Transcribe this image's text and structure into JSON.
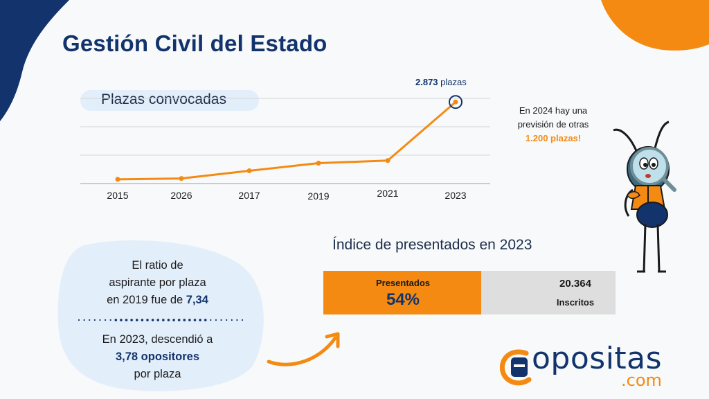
{
  "title": "Gestión Civil del Estado",
  "colors": {
    "navy": "#12336b",
    "orange": "#f48a12",
    "light_blue": "#e3eefb",
    "bar_gray": "#dedede"
  },
  "chart_data": [
    {
      "type": "line",
      "title": "Plazas convocadas",
      "categories": [
        "2015",
        "2026",
        "2017",
        "2019",
        "2021",
        "2023"
      ],
      "series": [
        {
          "values": [
            150,
            180,
            450,
            720,
            810,
            2873
          ]
        }
      ],
      "ylim": [
        0,
        3000
      ],
      "grid": true,
      "annotation": {
        "value": "2.873",
        "unit": "plazas",
        "point": "2023"
      }
    },
    {
      "type": "bar",
      "title": "Índice de presentados en 2023",
      "categories": [
        "Presentados",
        "Inscritos"
      ],
      "values": [
        54,
        100
      ],
      "labels": {
        "presentados_label": "Presentados",
        "presentados_value": "54%",
        "inscritos_value": "20.364",
        "inscritos_label": "Inscritos"
      }
    }
  ],
  "forecast": {
    "line1": "En 2024 hay una",
    "line2": "previsión de otras",
    "highlight": "1.200 plazas!"
  },
  "ratio_box": {
    "line1": "El ratio de",
    "line2": "aspirante por plaza",
    "line3_prefix": "en 2019 fue de",
    "line3_value": "7,34",
    "line4": "En 2023, descendió a",
    "line5": "3,78 opositores",
    "line6": "por plaza"
  },
  "logo": {
    "text": "opositas",
    "sub": ".com"
  }
}
